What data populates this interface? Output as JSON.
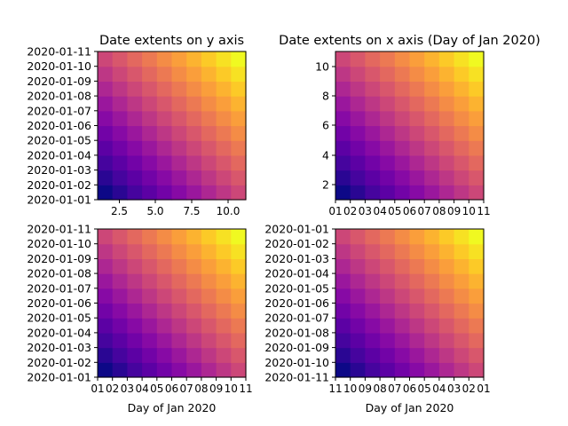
{
  "figure": {
    "background": "#ffffff"
  },
  "chart_data": [
    {
      "type": "heatmap",
      "title": "Date extents on y axis",
      "xlabel": "",
      "ylabel": "",
      "colormap": "plasma",
      "grid": "10x10 cells, value = row + col",
      "x_ticks": [
        "2.5",
        "5.0",
        "7.5",
        "10.0"
      ],
      "y_ticks": [
        "2020-01-01",
        "2020-01-02",
        "2020-01-03",
        "2020-01-04",
        "2020-01-05",
        "2020-01-06",
        "2020-01-07",
        "2020-01-08",
        "2020-01-09",
        "2020-01-10",
        "2020-01-11"
      ]
    },
    {
      "type": "heatmap",
      "title": "Date extents on x axis (Day of Jan 2020)",
      "xlabel": "",
      "ylabel": "",
      "colormap": "plasma",
      "grid": "10x10 cells, value = row + col",
      "x_ticks": [
        "01",
        "02",
        "03",
        "04",
        "05",
        "06",
        "07",
        "08",
        "09",
        "10",
        "11"
      ],
      "y_ticks": [
        "2",
        "4",
        "6",
        "8",
        "10"
      ]
    },
    {
      "type": "heatmap",
      "title": "",
      "xlabel": "Day of Jan 2020",
      "ylabel": "",
      "colormap": "plasma",
      "grid": "10x10 cells, value = row + col",
      "x_ticks": [
        "01",
        "02",
        "03",
        "04",
        "05",
        "06",
        "07",
        "08",
        "09",
        "10",
        "11"
      ],
      "y_ticks": [
        "2020-01-01",
        "2020-01-02",
        "2020-01-03",
        "2020-01-04",
        "2020-01-05",
        "2020-01-06",
        "2020-01-07",
        "2020-01-08",
        "2020-01-09",
        "2020-01-10",
        "2020-01-11"
      ]
    },
    {
      "type": "heatmap",
      "title": "",
      "xlabel": "Day of Jan 2020",
      "ylabel": "",
      "colormap": "plasma",
      "grid": "10x10 cells, value = row + col",
      "x_ticks": [
        "11",
        "10",
        "09",
        "08",
        "07",
        "06",
        "05",
        "04",
        "03",
        "02",
        "01"
      ],
      "y_ticks": [
        "2020-01-11",
        "2020-01-10",
        "2020-01-09",
        "2020-01-08",
        "2020-01-07",
        "2020-01-06",
        "2020-01-05",
        "2020-01-04",
        "2020-01-03",
        "2020-01-02",
        "2020-01-01"
      ]
    }
  ]
}
